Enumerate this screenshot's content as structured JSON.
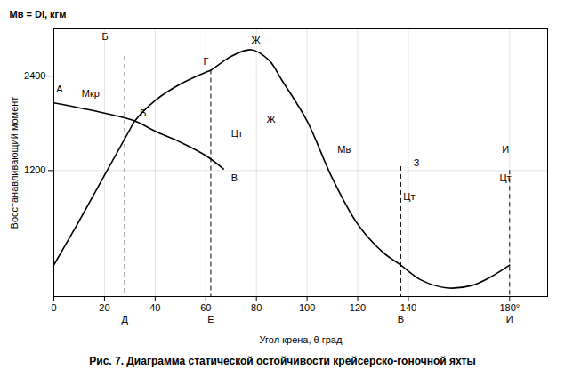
{
  "chart_data": {
    "type": "line",
    "title": "Рис. 7. Диаграмма статической остойчивости крейсерско-гоночной яхты",
    "xlabel": "Угол крена, θ град",
    "ylabel": "Восстанавливающий момент",
    "ylabel_top": "Mв = Dl, кгм",
    "xlim": [
      0,
      195
    ],
    "ylim": [
      -400,
      3000
    ],
    "xticks": [
      0,
      20,
      40,
      60,
      80,
      100,
      120,
      140,
      {
        "value": 180,
        "label": "180°"
      }
    ],
    "yticks": [
      1200,
      2400
    ],
    "grid": true,
    "series": [
      {
        "name": "Mв",
        "color": "#000000",
        "line_style": "solid",
        "x": [
          0,
          10,
          20,
          30,
          32,
          40,
          50,
          60,
          62,
          70,
          78,
          85,
          90,
          100,
          110,
          120,
          130,
          137,
          145,
          155,
          165,
          172,
          180
        ],
        "values": [
          0,
          560,
          1140,
          1720,
          1830,
          2090,
          2300,
          2450,
          2475,
          2650,
          2735,
          2600,
          2350,
          1830,
          1100,
          520,
          160,
          0,
          -190,
          -290,
          -260,
          -160,
          0
        ]
      },
      {
        "name": "Mкр",
        "color": "#000000",
        "line_style": "solid",
        "x": [
          0,
          20,
          32,
          40,
          50,
          60,
          67
        ],
        "values": [
          2060,
          1930,
          1830,
          1700,
          1560,
          1390,
          1220
        ]
      }
    ],
    "reference_lines": [
      {
        "x": 28,
        "y": 2650,
        "label": "Д",
        "line_style": "dashed"
      },
      {
        "x": 62,
        "y": 2475,
        "label": "Е",
        "line_style": "dashed"
      },
      {
        "x": 137,
        "y": 1250,
        "label": "В",
        "line_style": "dashed"
      },
      {
        "x": 180,
        "y": 1200,
        "label": "И",
        "line_style": "dashed"
      }
    ],
    "annotations": [
      {
        "text": "А",
        "x": 1,
        "y": 2230
      },
      {
        "text": "Mкр",
        "x": 11,
        "y": 2180
      },
      {
        "text": "Б",
        "x": 34,
        "y": 1930
      },
      {
        "text": "В",
        "x": 70,
        "y": 1100
      },
      {
        "text": "Г",
        "x": 59,
        "y": 2580
      },
      {
        "text": "Ж",
        "x": 78,
        "y": 2850
      },
      {
        "text": "Mв",
        "x": 112,
        "y": 1460
      },
      {
        "text": "Б",
        "x": 19,
        "y": 2900
      },
      {
        "text": "Ж",
        "x": 84,
        "y": 1850
      },
      {
        "text": "Цт",
        "x": 70,
        "y": 1670
      },
      {
        "text": "З",
        "x": 142,
        "y": 1300
      },
      {
        "text": "Цт",
        "x": 138,
        "y": 870
      },
      {
        "text": "И",
        "x": 177,
        "y": 1460
      },
      {
        "text": "Цт",
        "x": 176,
        "y": 1100
      }
    ]
  }
}
